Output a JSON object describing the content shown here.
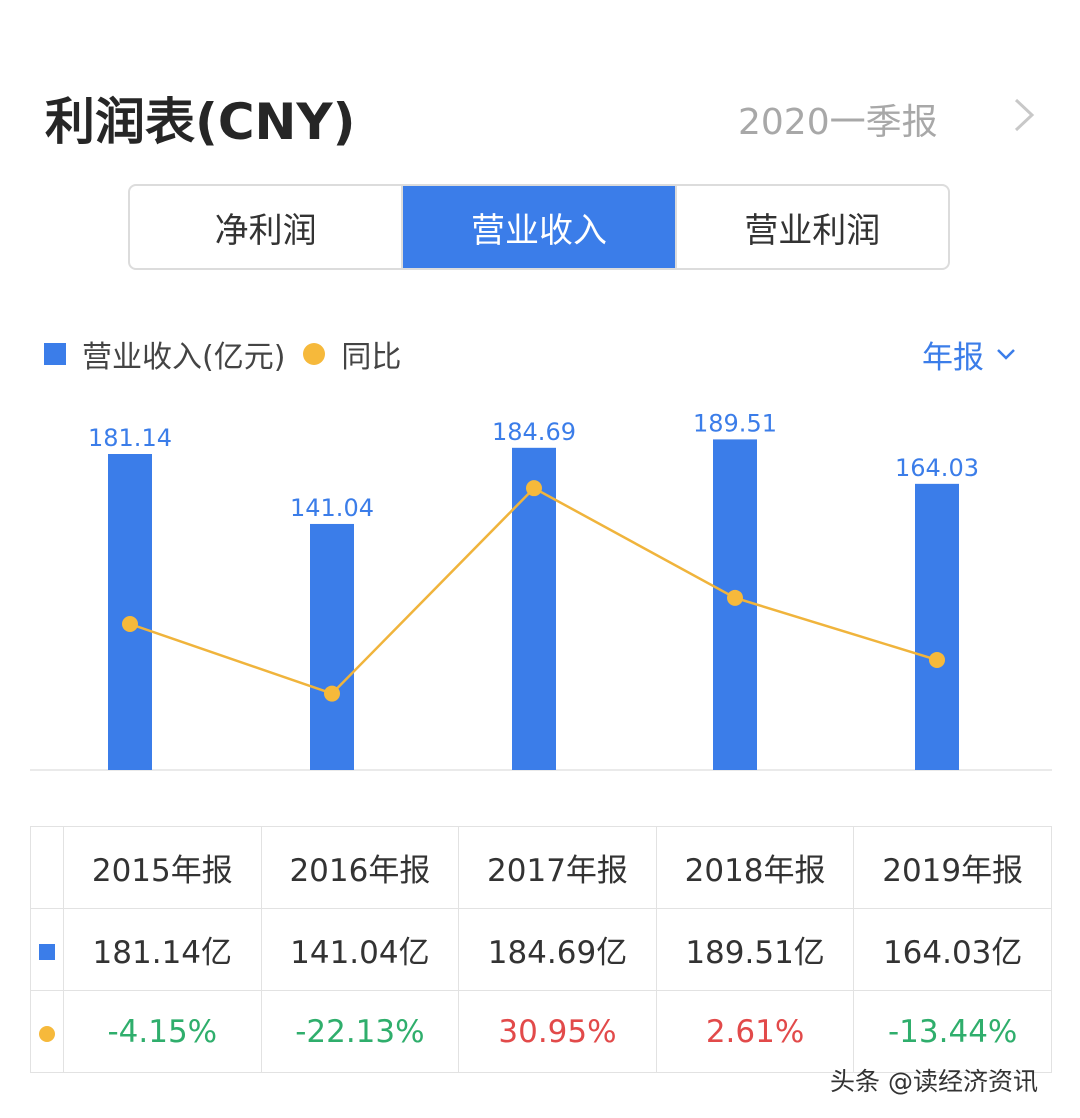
{
  "header": {
    "title": "利润表(CNY)",
    "period": "2020一季报"
  },
  "tabs": [
    {
      "label": "净利润",
      "active": false
    },
    {
      "label": "营业收入",
      "active": true
    },
    {
      "label": "营业利润",
      "active": false
    }
  ],
  "legend": {
    "bar_label": "营业收入(亿元)",
    "line_label": "同比"
  },
  "period_select": {
    "label": "年报"
  },
  "colors": {
    "bar": "#3b7de9",
    "line": "#f6b93b",
    "positive": "#e24a4a",
    "negative": "#2fae6c"
  },
  "chart_data": {
    "type": "bar",
    "categories": [
      "2015年报",
      "2016年报",
      "2017年报",
      "2018年报",
      "2019年报"
    ],
    "series": [
      {
        "name": "营业收入(亿元)",
        "type": "bar",
        "values": [
          181.14,
          141.04,
          184.69,
          189.51,
          164.03
        ]
      },
      {
        "name": "同比",
        "type": "line",
        "values": [
          -4.15,
          -22.13,
          30.95,
          2.61,
          -13.44
        ]
      }
    ],
    "bar_labels": [
      "181.14",
      "141.04",
      "184.69",
      "189.51",
      "164.03"
    ]
  },
  "table": {
    "headers": [
      "2015年报",
      "2016年报",
      "2017年报",
      "2018年报",
      "2019年报"
    ],
    "values": [
      "181.14亿",
      "141.04亿",
      "184.69亿",
      "189.51亿",
      "164.03亿"
    ],
    "yoy": [
      "-4.15%",
      "-22.13%",
      "30.95%",
      "2.61%",
      "-13.44%"
    ]
  },
  "watermark": "头条 @读经济资讯"
}
